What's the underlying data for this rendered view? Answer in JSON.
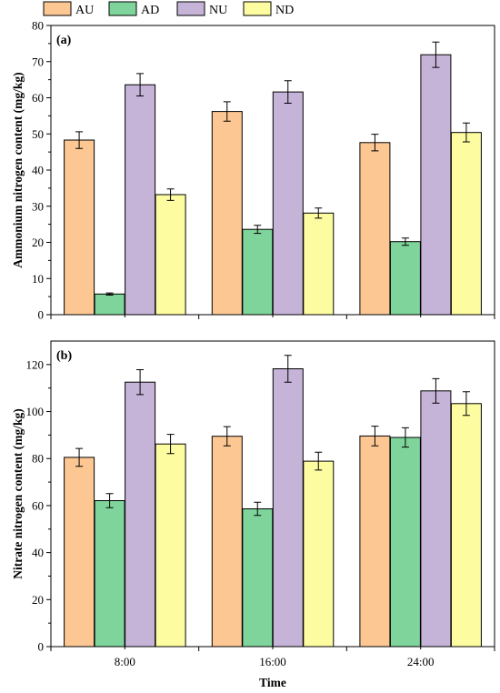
{
  "colors": {
    "AU": "#FDC794",
    "AD": "#7ED49A",
    "NU": "#C6B3D8",
    "ND": "#FEFCA0"
  },
  "legend": [
    "AU",
    "AD",
    "NU",
    "ND"
  ],
  "shared_xlabel": "Time",
  "chart_data": [
    {
      "type": "bar",
      "panel_label": "(a)",
      "categories": [
        "8:00",
        "16:00",
        "24:00"
      ],
      "ylabel": "Ammonium nitrogen content (mg/kg)",
      "ylim": [
        0,
        80
      ],
      "yticks": [
        0,
        10,
        20,
        30,
        40,
        50,
        60,
        70,
        80
      ],
      "series": [
        {
          "name": "AU",
          "values": [
            48.3,
            56.2,
            47.6
          ],
          "errors": [
            2.3,
            2.7,
            2.3
          ]
        },
        {
          "name": "AD",
          "values": [
            5.7,
            23.6,
            20.2
          ],
          "errors": [
            0.3,
            1.1,
            1.0
          ]
        },
        {
          "name": "NU",
          "values": [
            63.6,
            61.6,
            71.9
          ],
          "errors": [
            3.1,
            3.1,
            3.5
          ]
        },
        {
          "name": "ND",
          "values": [
            33.2,
            28.1,
            50.4
          ],
          "errors": [
            1.6,
            1.4,
            2.6
          ]
        }
      ]
    },
    {
      "type": "bar",
      "panel_label": "(b)",
      "categories": [
        "8:00",
        "16:00",
        "24:00"
      ],
      "ylabel": "Nitrate nitrogen content (mg/kg)",
      "ylim": [
        0,
        130
      ],
      "yticks": [
        0,
        20,
        40,
        60,
        80,
        100,
        120
      ],
      "series": [
        {
          "name": "AU",
          "values": [
            80.5,
            89.5,
            89.6
          ],
          "errors": [
            3.8,
            4.1,
            4.2
          ]
        },
        {
          "name": "AD",
          "values": [
            62.1,
            58.6,
            89.0
          ],
          "errors": [
            3.0,
            2.8,
            4.1
          ]
        },
        {
          "name": "NU",
          "values": [
            112.5,
            118.2,
            108.8
          ],
          "errors": [
            5.3,
            5.7,
            5.2
          ]
        },
        {
          "name": "ND",
          "values": [
            86.2,
            78.9,
            103.4
          ],
          "errors": [
            4.1,
            3.8,
            5.0
          ]
        }
      ]
    }
  ]
}
